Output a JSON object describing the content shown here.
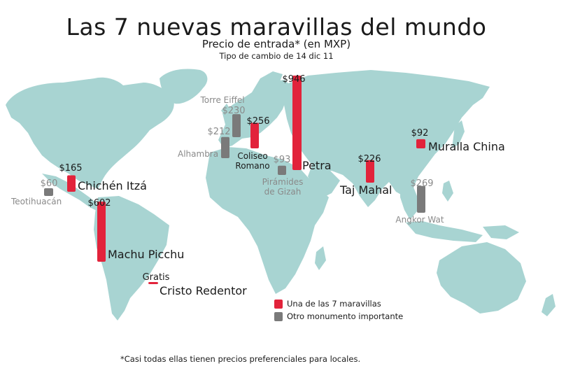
{
  "title": "Las 7 nuevas maravillas del mundo",
  "subtitle": "Precio de entrada* (en MXP)",
  "subnote": "Tipo de cambio de 14 dic 11",
  "footnote": "*Casi todas ellas tienen precios preferenciales para locales.",
  "colors": {
    "wonder": "#e2233b",
    "other": "#7a7a7a",
    "land": "#a8d4d2",
    "text": "#1a1a1a",
    "other_text": "#8a8a8a"
  },
  "legend": {
    "position": "bottom-right",
    "wonder_label": "Una de las 7 maravillas",
    "other_label": "Otro monumento importante"
  },
  "chart_data": {
    "type": "bar",
    "title": "Las 7 nuevas maravillas del mundo",
    "subtitle": "Precio de entrada* (en MXP)",
    "xlabel": "",
    "ylabel": "",
    "grid": false,
    "series": [
      {
        "name": "Una de las 7 maravillas",
        "categories": [
          "Chichén Itzá",
          "Machu Picchu",
          "Cristo Redentor",
          "Coliseo Romano",
          "Petra",
          "Taj Mahal",
          "Muralla China"
        ],
        "values": [
          165,
          602,
          0,
          256,
          946,
          226,
          92
        ],
        "labels": [
          "$165",
          "$602",
          "Gratis",
          "$256",
          "$946",
          "$226",
          "$92"
        ]
      },
      {
        "name": "Otro monumento importante",
        "categories": [
          "Teotihuacán",
          "Alhambra",
          "Torre Eiffel",
          "Pirámides de Gizah",
          "Angkor Wat"
        ],
        "values": [
          60,
          212,
          230,
          93,
          269
        ],
        "labels": [
          "$60",
          "$212",
          "$230",
          "$93",
          "$269"
        ]
      }
    ],
    "markers": [
      {
        "name": "Chichén Itzá",
        "kind": "wonder",
        "value": 165,
        "value_label": "$165",
        "label": "Chichén Itzá"
      },
      {
        "name": "Machu Picchu",
        "kind": "wonder",
        "value": 602,
        "value_label": "$602",
        "label": "Machu Picchu"
      },
      {
        "name": "Cristo Redentor",
        "kind": "wonder",
        "value": 0,
        "value_label": "Gratis",
        "label": "Cristo Redentor"
      },
      {
        "name": "Coliseo Romano",
        "kind": "wonder",
        "value": 256,
        "value_label": "$256",
        "label": "Coliseo\nRomano"
      },
      {
        "name": "Petra",
        "kind": "wonder",
        "value": 946,
        "value_label": "$946",
        "label": "Petra"
      },
      {
        "name": "Taj Mahal",
        "kind": "wonder",
        "value": 226,
        "value_label": "$226",
        "label": "Taj Mahal"
      },
      {
        "name": "Muralla China",
        "kind": "wonder",
        "value": 92,
        "value_label": "$92",
        "label": "Muralla China"
      },
      {
        "name": "Teotihuacán",
        "kind": "other",
        "value": 60,
        "value_label": "$60",
        "label": "Teotihuacán"
      },
      {
        "name": "Alhambra",
        "kind": "other",
        "value": 212,
        "value_label": "$212",
        "label": "Alhambra"
      },
      {
        "name": "Torre Eiffel",
        "kind": "other",
        "value": 230,
        "value_label": "$230",
        "label": "Torre Eiffel"
      },
      {
        "name": "Pirámides de Gizah",
        "kind": "other",
        "value": 93,
        "value_label": "$93",
        "label": "Pirámides\nde Gizah"
      },
      {
        "name": "Angkor Wat",
        "kind": "other",
        "value": 269,
        "value_label": "$269",
        "label": "Angkor Wat"
      }
    ]
  }
}
